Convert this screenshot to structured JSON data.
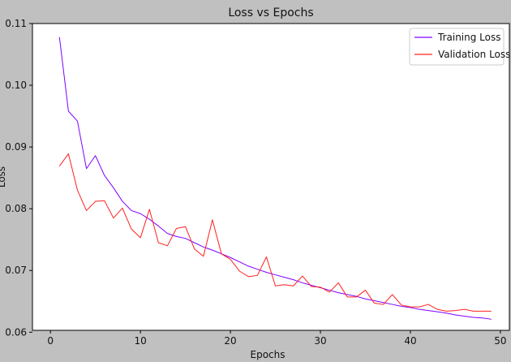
{
  "chart_data": {
    "type": "line",
    "title": "Loss vs Epochs",
    "xlabel": "Epochs",
    "ylabel": "Loss",
    "xlim": [
      -2,
      51
    ],
    "ylim": [
      0.0603,
      0.11
    ],
    "xticks": [
      0,
      10,
      20,
      30,
      40,
      50
    ],
    "yticks": [
      0.06,
      0.07,
      0.08,
      0.09,
      0.1,
      0.11
    ],
    "ytick_labels": [
      "0.06",
      "0.07",
      "0.08",
      "0.09",
      "0.10",
      "0.11"
    ],
    "grid": false,
    "legend_position": "top-right",
    "x": [
      1,
      2,
      3,
      4,
      5,
      6,
      7,
      8,
      9,
      10,
      11,
      12,
      13,
      14,
      15,
      16,
      17,
      18,
      19,
      20,
      21,
      22,
      23,
      24,
      25,
      26,
      27,
      28,
      29,
      30,
      31,
      32,
      33,
      34,
      35,
      36,
      37,
      38,
      39,
      40,
      41,
      42,
      43,
      44,
      45,
      46,
      47,
      48,
      49
    ],
    "series": [
      {
        "name": "Training Loss",
        "color": "#8000ff",
        "values": [
          0.1078,
          0.0958,
          0.0942,
          0.0865,
          0.0886,
          0.0854,
          0.0834,
          0.0812,
          0.0797,
          0.0792,
          0.0783,
          0.0772,
          0.076,
          0.0755,
          0.0752,
          0.0745,
          0.0738,
          0.0733,
          0.0727,
          0.0721,
          0.0714,
          0.0707,
          0.0702,
          0.0697,
          0.0693,
          0.0689,
          0.0685,
          0.068,
          0.0676,
          0.0672,
          0.0668,
          0.0664,
          0.0661,
          0.0658,
          0.0654,
          0.0651,
          0.0648,
          0.0645,
          0.0642,
          0.064,
          0.0637,
          0.0635,
          0.0633,
          0.0631,
          0.0628,
          0.0626,
          0.0624,
          0.0623,
          0.0621
        ]
      },
      {
        "name": "Validation Loss",
        "color": "#ff2020",
        "values": [
          0.0869,
          0.0889,
          0.083,
          0.0797,
          0.0812,
          0.0813,
          0.0785,
          0.0801,
          0.0767,
          0.0753,
          0.0799,
          0.0745,
          0.074,
          0.0768,
          0.0771,
          0.0735,
          0.0723,
          0.0782,
          0.0727,
          0.0718,
          0.0699,
          0.069,
          0.0692,
          0.0722,
          0.0675,
          0.0677,
          0.0675,
          0.0691,
          0.0674,
          0.0673,
          0.0665,
          0.068,
          0.0657,
          0.0657,
          0.0668,
          0.0647,
          0.0645,
          0.0661,
          0.0644,
          0.0641,
          0.0641,
          0.0645,
          0.0637,
          0.0634,
          0.0635,
          0.0637,
          0.0634,
          0.0634,
          0.0634
        ]
      }
    ]
  }
}
